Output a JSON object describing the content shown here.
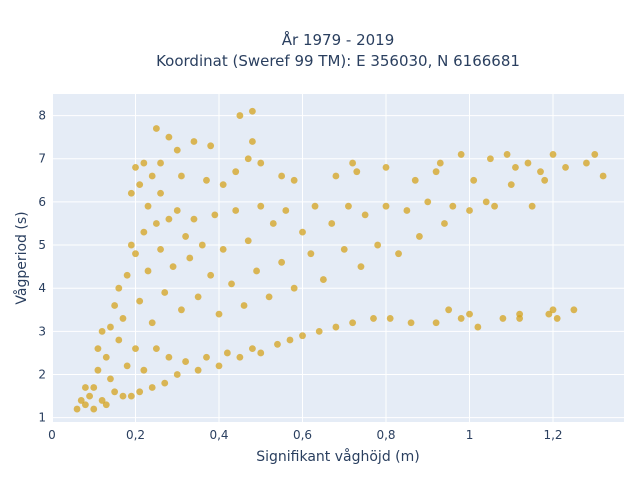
{
  "chart_data": {
    "type": "scatter",
    "title": [
      "År 1979 - 2019",
      "Koordinat (Sweref 99 TM): E 356030, N 6166681"
    ],
    "xlabel": "Signifikant våghöjd (m)",
    "ylabel": "Vågperiod (s)",
    "xlim": [
      0,
      1.37
    ],
    "ylim": [
      0.9,
      8.5
    ],
    "xticks": [
      0,
      0.2,
      0.4,
      0.6,
      0.8,
      1,
      1.2
    ],
    "xtick_labels": [
      "0",
      "0,2",
      "0,4",
      "0,6",
      "0,8",
      "1",
      "1,2"
    ],
    "yticks": [
      1,
      2,
      3,
      4,
      5,
      6,
      7,
      8
    ],
    "ytick_labels": [
      "1",
      "2",
      "3",
      "4",
      "5",
      "6",
      "7",
      "8"
    ],
    "grid": true,
    "background": "#e5ecf6",
    "marker_color": "#d4a31e",
    "series": [
      {
        "points": [
          [
            0.06,
            1.2
          ],
          [
            0.07,
            1.4
          ],
          [
            0.08,
            1.3
          ],
          [
            0.09,
            1.5
          ],
          [
            0.1,
            1.2
          ],
          [
            0.1,
            1.7
          ],
          [
            0.11,
            2.1
          ],
          [
            0.11,
            2.6
          ],
          [
            0.12,
            1.4
          ],
          [
            0.12,
            3.0
          ],
          [
            0.13,
            1.3
          ],
          [
            0.13,
            2.4
          ],
          [
            0.14,
            3.1
          ],
          [
            0.14,
            1.9
          ],
          [
            0.15,
            3.6
          ],
          [
            0.15,
            1.6
          ],
          [
            0.16,
            2.8
          ],
          [
            0.16,
            4.0
          ],
          [
            0.17,
            1.5
          ],
          [
            0.17,
            3.3
          ],
          [
            0.18,
            2.2
          ],
          [
            0.18,
            4.3
          ],
          [
            0.19,
            1.5
          ],
          [
            0.19,
            5.0
          ],
          [
            0.2,
            2.6
          ],
          [
            0.2,
            4.8
          ],
          [
            0.21,
            1.6
          ],
          [
            0.21,
            3.7
          ],
          [
            0.22,
            5.3
          ],
          [
            0.22,
            2.1
          ],
          [
            0.23,
            4.4
          ],
          [
            0.23,
            5.9
          ],
          [
            0.24,
            1.7
          ],
          [
            0.24,
            3.2
          ],
          [
            0.25,
            5.5
          ],
          [
            0.25,
            2.6
          ],
          [
            0.26,
            4.9
          ],
          [
            0.26,
            6.2
          ],
          [
            0.27,
            1.8
          ],
          [
            0.27,
            3.9
          ],
          [
            0.28,
            5.6
          ],
          [
            0.28,
            2.4
          ],
          [
            0.29,
            4.5
          ],
          [
            0.3,
            5.8
          ],
          [
            0.3,
            2.0
          ],
          [
            0.31,
            3.5
          ],
          [
            0.32,
            5.2
          ],
          [
            0.32,
            2.3
          ],
          [
            0.33,
            4.7
          ],
          [
            0.34,
            5.6
          ],
          [
            0.35,
            2.1
          ],
          [
            0.35,
            3.8
          ],
          [
            0.36,
            5.0
          ],
          [
            0.37,
            2.4
          ],
          [
            0.38,
            4.3
          ],
          [
            0.39,
            5.7
          ],
          [
            0.4,
            2.2
          ],
          [
            0.4,
            3.4
          ],
          [
            0.41,
            4.9
          ],
          [
            0.42,
            2.5
          ],
          [
            0.43,
            4.1
          ],
          [
            0.44,
            5.8
          ],
          [
            0.45,
            2.4
          ],
          [
            0.46,
            3.6
          ],
          [
            0.47,
            5.1
          ],
          [
            0.48,
            2.6
          ],
          [
            0.49,
            4.4
          ],
          [
            0.5,
            5.9
          ],
          [
            0.5,
            2.5
          ],
          [
            0.52,
            3.8
          ],
          [
            0.53,
            5.5
          ],
          [
            0.54,
            2.7
          ],
          [
            0.55,
            4.6
          ],
          [
            0.56,
            5.8
          ],
          [
            0.57,
            2.8
          ],
          [
            0.58,
            4.0
          ],
          [
            0.6,
            5.3
          ],
          [
            0.6,
            2.9
          ],
          [
            0.62,
            4.8
          ],
          [
            0.63,
            5.9
          ],
          [
            0.64,
            3.0
          ],
          [
            0.65,
            4.2
          ],
          [
            0.67,
            5.5
          ],
          [
            0.68,
            3.1
          ],
          [
            0.7,
            4.9
          ],
          [
            0.71,
            5.9
          ],
          [
            0.72,
            3.2
          ],
          [
            0.74,
            4.5
          ],
          [
            0.75,
            5.7
          ],
          [
            0.77,
            3.3
          ],
          [
            0.78,
            5.0
          ],
          [
            0.8,
            5.9
          ],
          [
            0.81,
            3.3
          ],
          [
            0.83,
            4.8
          ],
          [
            0.85,
            5.8
          ],
          [
            0.86,
            3.2
          ],
          [
            0.88,
            5.2
          ],
          [
            0.9,
            6.0
          ],
          [
            0.92,
            3.2
          ],
          [
            0.94,
            5.5
          ],
          [
            0.96,
            5.9
          ],
          [
            0.98,
            3.3
          ],
          [
            1.0,
            5.8
          ],
          [
            1.02,
            3.1
          ],
          [
            1.04,
            6.0
          ],
          [
            1.06,
            5.9
          ],
          [
            1.08,
            3.3
          ],
          [
            1.1,
            6.4
          ],
          [
            1.12,
            3.4
          ],
          [
            1.15,
            5.9
          ],
          [
            1.18,
            6.5
          ],
          [
            1.2,
            3.5
          ],
          [
            1.21,
            3.3
          ],
          [
            1.25,
            3.5
          ],
          [
            1.28,
            6.9
          ],
          [
            1.32,
            6.6
          ],
          [
            1.3,
            7.1
          ],
          [
            1.23,
            6.8
          ],
          [
            1.2,
            7.1
          ],
          [
            1.14,
            6.9
          ],
          [
            1.09,
            7.1
          ],
          [
            1.05,
            7.0
          ],
          [
            0.98,
            7.1
          ],
          [
            0.93,
            6.9
          ],
          [
            0.73,
            6.7
          ],
          [
            0.72,
            6.9
          ],
          [
            0.58,
            6.5
          ],
          [
            0.5,
            6.9
          ],
          [
            0.47,
            7.0
          ],
          [
            0.41,
            6.4
          ],
          [
            0.38,
            7.3
          ],
          [
            0.34,
            7.4
          ],
          [
            0.3,
            7.2
          ],
          [
            0.28,
            7.5
          ],
          [
            0.25,
            7.7
          ],
          [
            0.22,
            6.9
          ],
          [
            0.2,
            6.8
          ],
          [
            0.45,
            8.0
          ],
          [
            0.48,
            8.1
          ],
          [
            0.48,
            7.4
          ],
          [
            0.26,
            6.9
          ],
          [
            0.24,
            6.6
          ],
          [
            0.21,
            6.4
          ],
          [
            0.19,
            6.2
          ],
          [
            0.31,
            6.6
          ],
          [
            0.37,
            6.5
          ],
          [
            0.44,
            6.7
          ],
          [
            0.55,
            6.6
          ],
          [
            0.68,
            6.6
          ],
          [
            0.8,
            6.8
          ],
          [
            0.87,
            6.5
          ],
          [
            0.92,
            6.7
          ],
          [
            1.01,
            6.5
          ],
          [
            1.11,
            6.8
          ],
          [
            1.17,
            6.7
          ],
          [
            1.0,
            3.4
          ],
          [
            0.95,
            3.5
          ],
          [
            1.12,
            3.3
          ],
          [
            1.19,
            3.4
          ],
          [
            0.08,
            1.7
          ]
        ]
      }
    ]
  }
}
